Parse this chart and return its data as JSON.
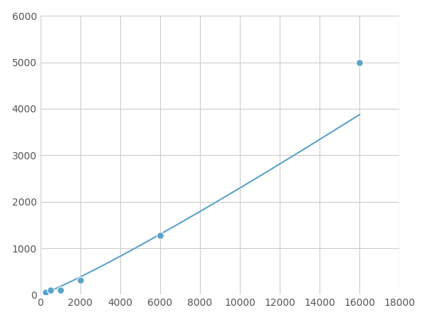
{
  "x": [
    250,
    500,
    1000,
    2000,
    6000,
    16000
  ],
  "y": [
    50,
    100,
    105,
    310,
    1280,
    5000
  ],
  "line_color": "#5ba3c9",
  "marker_color": "#5ba3c9",
  "marker_size": 7,
  "line_width": 1.5,
  "xlim": [
    0,
    18000
  ],
  "ylim": [
    0,
    6000
  ],
  "xticks": [
    0,
    2000,
    4000,
    6000,
    8000,
    10000,
    12000,
    14000,
    16000,
    18000
  ],
  "yticks": [
    0,
    1000,
    2000,
    3000,
    4000,
    5000,
    6000
  ],
  "grid_color": "#cccccc",
  "background_color": "#ffffff"
}
